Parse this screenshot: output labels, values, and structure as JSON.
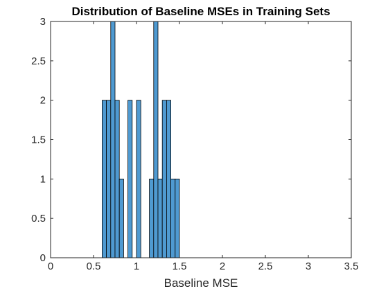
{
  "chart_data": {
    "type": "bar",
    "subtype": "histogram",
    "title": "Distribution of Baseline MSEs in Training Sets",
    "xlabel": "Baseline MSE",
    "ylabel": "",
    "xlim": [
      0,
      3.5
    ],
    "ylim": [
      0,
      3
    ],
    "xticks": [
      "0",
      "0.5",
      "1",
      "1.5",
      "2",
      "2.5",
      "3",
      "3.5"
    ],
    "yticks": [
      "0",
      "0.5",
      "1",
      "1.5",
      "2",
      "2.5",
      "3"
    ],
    "grid": false,
    "bin_width": 0.05,
    "bins": [
      {
        "start": 0.6,
        "count": 2
      },
      {
        "start": 0.65,
        "count": 2
      },
      {
        "start": 0.7,
        "count": 3
      },
      {
        "start": 0.75,
        "count": 2
      },
      {
        "start": 0.8,
        "count": 1
      },
      {
        "start": 0.85,
        "count": 0
      },
      {
        "start": 0.9,
        "count": 2
      },
      {
        "start": 0.95,
        "count": 0
      },
      {
        "start": 1.0,
        "count": 2
      },
      {
        "start": 1.05,
        "count": 0
      },
      {
        "start": 1.1,
        "count": 0
      },
      {
        "start": 1.15,
        "count": 1
      },
      {
        "start": 1.2,
        "count": 3
      },
      {
        "start": 1.25,
        "count": 1
      },
      {
        "start": 1.3,
        "count": 2
      },
      {
        "start": 1.35,
        "count": 2
      },
      {
        "start": 1.4,
        "count": 1
      },
      {
        "start": 1.45,
        "count": 1
      }
    ],
    "colors": {
      "bar_fill": "#4f9ad1",
      "bar_edge": "#000000",
      "axis": "#262626"
    }
  }
}
